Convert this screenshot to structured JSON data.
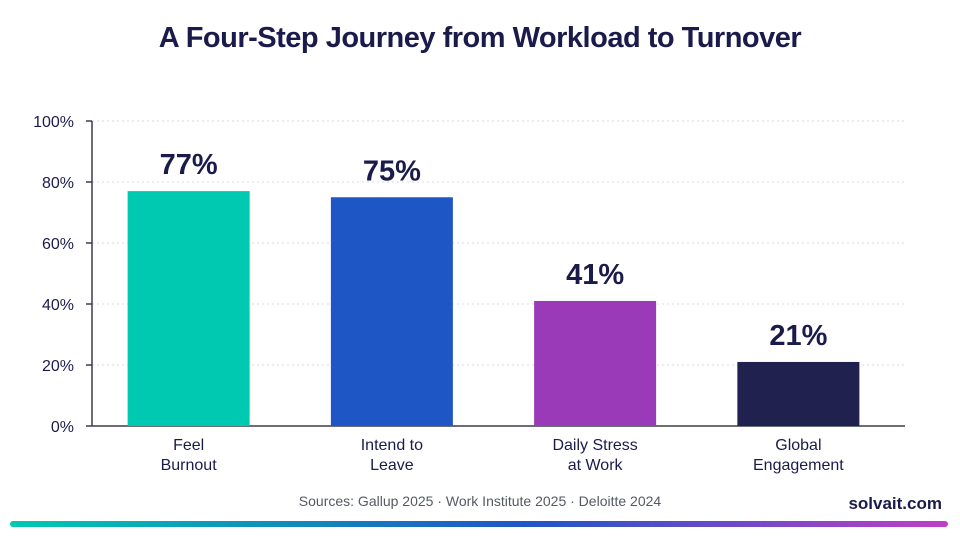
{
  "chart_data": {
    "type": "bar",
    "title": "A Four-Step Journey from Workload to Turnover",
    "categories": [
      [
        "Feel",
        "Burnout"
      ],
      [
        "Intend to",
        "Leave"
      ],
      [
        "Daily Stress",
        "at Work"
      ],
      [
        "Global",
        "Engagement"
      ]
    ],
    "values": [
      77,
      75,
      41,
      21
    ],
    "data_labels": [
      "77%",
      "75%",
      "41%",
      "21%"
    ],
    "bar_colors": [
      "#00c9b1",
      "#1f56c6",
      "#9b3ab8",
      "#21214f"
    ],
    "ylim": [
      0,
      100
    ],
    "yticks": [
      0,
      20,
      40,
      60,
      80,
      100
    ],
    "ytick_labels": [
      "0%",
      "20%",
      "40%",
      "60%",
      "80%",
      "100%"
    ],
    "xlabel": "",
    "ylabel": "",
    "grid": true,
    "legend": "none"
  },
  "footer": {
    "sources": "Sources: Gallup 2025 · Work Institute 2025 · Deloitte 2024",
    "brand": "solvait.com",
    "accent_gradient": [
      "#00c9b1",
      "#1f56c6",
      "#c03ec8"
    ]
  },
  "colors": {
    "text_dark": "#1a1b4b",
    "grid": "#d9dbe0",
    "axis": "#3a3d4a"
  }
}
